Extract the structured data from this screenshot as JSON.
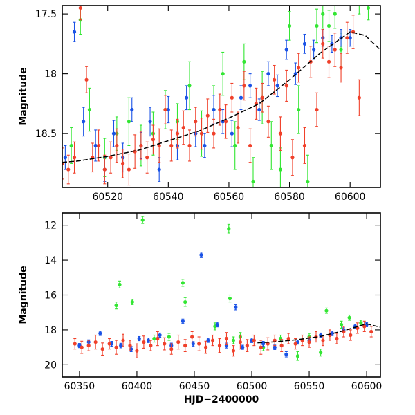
{
  "colors": {
    "green": "#33e633",
    "blue": "#1a52e6",
    "red": "#f0402a",
    "fit": "#000000",
    "axis": "#000000",
    "background": "#ffffff"
  },
  "chart_data": [
    {
      "type": "scatter",
      "panel": "top",
      "title": "",
      "xlabel": "",
      "ylabel": "Magnitude",
      "xlim": [
        60505,
        60610
      ],
      "ylim": [
        18.95,
        17.43
      ],
      "inverted_y": true,
      "x_ticks": [
        60520,
        60540,
        60560,
        60580,
        60600
      ],
      "y_ticks": [
        17.5,
        18,
        18.5
      ],
      "x_tick_labels": [
        "60520",
        "60540",
        "60560",
        "60580",
        "60600"
      ],
      "y_tick_labels": [
        "17.5",
        "18",
        "18.5"
      ],
      "grid": false,
      "series": [
        {
          "color": "green",
          "marker": "point-with-errorbar",
          "x": [
            60508,
            60511,
            60514,
            60519,
            60523,
            60527,
            60531,
            60535,
            60539,
            60543,
            60547,
            60551,
            60555,
            60558,
            60562,
            60565,
            60568,
            60571,
            60574,
            60577,
            60580,
            60583,
            60586,
            60589,
            60591,
            60593,
            60595,
            60597,
            60603,
            60606
          ],
          "y": [
            18.6,
            17.55,
            18.3,
            18.7,
            18.5,
            18.4,
            18.6,
            18.5,
            18.3,
            18.4,
            18.1,
            18.5,
            18.3,
            18.0,
            18.6,
            17.9,
            18.9,
            18.2,
            18.6,
            18.8,
            17.6,
            18.3,
            18.9,
            17.6,
            17.5,
            17.6,
            17.5,
            17.8,
            17.4,
            17.45
          ],
          "err": [
            0.15,
            0.12,
            0.18,
            0.16,
            0.14,
            0.2,
            0.17,
            0.18,
            0.16,
            0.15,
            0.2,
            0.19,
            0.2,
            0.18,
            0.2,
            0.15,
            0.2,
            0.22,
            0.2,
            0.18,
            0.12,
            0.2,
            0.22,
            0.14,
            0.12,
            0.13,
            0.12,
            0.14,
            0.1,
            0.1
          ]
        },
        {
          "color": "blue",
          "marker": "point-with-errorbar",
          "x": [
            60506,
            60509,
            60512,
            60516,
            60519,
            60522,
            60525,
            60528,
            60531,
            60534,
            60537,
            60540,
            60543,
            60546,
            60549,
            60552,
            60555,
            60558,
            60561,
            60564,
            60567,
            60570,
            60573,
            60576,
            60579,
            60582,
            60585,
            60588,
            60591,
            60594,
            60597,
            60600
          ],
          "y": [
            18.7,
            17.65,
            18.4,
            18.6,
            18.8,
            18.5,
            18.7,
            18.3,
            18.6,
            18.4,
            18.8,
            18.3,
            18.6,
            18.2,
            18.5,
            18.6,
            18.3,
            18.4,
            18.5,
            18.2,
            18.1,
            18.3,
            18.0,
            18.1,
            17.8,
            18.0,
            17.75,
            17.8,
            17.7,
            17.75,
            17.7,
            17.7
          ],
          "err": [
            0.1,
            0.08,
            0.12,
            0.13,
            0.1,
            0.11,
            0.12,
            0.1,
            0.11,
            0.12,
            0.1,
            0.11,
            0.12,
            0.1,
            0.11,
            0.1,
            0.12,
            0.1,
            0.11,
            0.1,
            0.1,
            0.09,
            0.1,
            0.09,
            0.08,
            0.09,
            0.08,
            0.08,
            0.07,
            0.07,
            0.07,
            0.07
          ]
        },
        {
          "color": "red",
          "marker": "point-with-errorbar",
          "x": [
            60505,
            60507,
            60509,
            60511,
            60513,
            60515,
            60517,
            60519,
            60521,
            60523,
            60525,
            60527,
            60529,
            60531,
            60533,
            60535,
            60537,
            60539,
            60541,
            60543,
            60545,
            60547,
            60549,
            60551,
            60553,
            60555,
            60557,
            60559,
            60561,
            60563,
            60565,
            60567,
            60569,
            60571,
            60573,
            60575,
            60577,
            60579,
            60581,
            60583,
            60585,
            60587,
            60589,
            60591,
            60593,
            60595,
            60597,
            60599,
            60601,
            60603
          ],
          "y": [
            18.75,
            18.8,
            18.7,
            17.45,
            18.05,
            18.7,
            18.6,
            18.8,
            18.7,
            18.6,
            18.75,
            18.8,
            18.65,
            18.6,
            18.7,
            18.55,
            18.6,
            18.3,
            18.6,
            18.5,
            18.45,
            18.6,
            18.4,
            18.5,
            18.35,
            18.5,
            18.3,
            18.4,
            18.2,
            18.45,
            18.1,
            18.6,
            18.25,
            18.2,
            18.4,
            18.05,
            18.5,
            18.1,
            18.7,
            17.95,
            18.6,
            17.9,
            18.3,
            17.75,
            17.9,
            17.8,
            17.95,
            17.7,
            17.65,
            18.2
          ],
          "err": [
            0.13,
            0.12,
            0.13,
            0.1,
            0.11,
            0.12,
            0.13,
            0.12,
            0.13,
            0.14,
            0.12,
            0.13,
            0.14,
            0.12,
            0.13,
            0.12,
            0.14,
            0.12,
            0.13,
            0.12,
            0.14,
            0.13,
            0.12,
            0.13,
            0.14,
            0.12,
            0.13,
            0.14,
            0.12,
            0.13,
            0.12,
            0.14,
            0.13,
            0.12,
            0.13,
            0.12,
            0.14,
            0.13,
            0.15,
            0.12,
            0.15,
            0.13,
            0.14,
            0.12,
            0.13,
            0.14,
            0.12,
            0.13,
            0.14,
            0.15
          ]
        }
      ],
      "fit_curve": {
        "color": "fit",
        "x": [
          60505,
          60510,
          60520,
          60530,
          60540,
          60550,
          60560,
          60570,
          60580,
          60590,
          60600,
          60605,
          60610
        ],
        "y": [
          18.74,
          18.73,
          18.69,
          18.64,
          18.56,
          18.48,
          18.37,
          18.25,
          18.05,
          17.83,
          17.65,
          17.68,
          17.8
        ]
      }
    },
    {
      "type": "scatter",
      "panel": "bottom",
      "title": "",
      "xlabel": "HJD−2400000",
      "ylabel": "Magnitude",
      "xlim": [
        60335,
        60612
      ],
      "ylim": [
        20.7,
        11.3
      ],
      "inverted_y": true,
      "x_ticks": [
        60350,
        60400,
        60450,
        60500,
        60550,
        60600
      ],
      "y_ticks": [
        12,
        14,
        16,
        18,
        20
      ],
      "x_tick_labels": [
        "60350",
        "60400",
        "60450",
        "60500",
        "60550",
        "60600"
      ],
      "y_tick_labels": [
        "12",
        "14",
        "16",
        "18",
        "20"
      ],
      "grid": false,
      "series": [
        {
          "color": "green",
          "marker": "point-with-errorbar",
          "x": [
            60382,
            60385,
            60396,
            60405,
            60415,
            60428,
            60440,
            60442,
            60468,
            60480,
            60481,
            60484,
            60490,
            60510,
            60525,
            60540,
            60550,
            60560,
            60565,
            60578,
            60585,
            60595
          ],
          "y": [
            16.6,
            15.4,
            16.4,
            11.7,
            18.5,
            18.4,
            15.3,
            16.4,
            17.8,
            12.2,
            16.2,
            18.6,
            18.4,
            19.0,
            18.5,
            19.5,
            18.4,
            19.3,
            16.9,
            17.7,
            17.3,
            17.6
          ],
          "err": [
            0.2,
            0.2,
            0.15,
            0.2,
            0.2,
            0.2,
            0.2,
            0.25,
            0.2,
            0.25,
            0.2,
            0.2,
            0.25,
            0.2,
            0.2,
            0.25,
            0.2,
            0.2,
            0.15,
            0.2,
            0.15,
            0.15
          ]
        },
        {
          "color": "blue",
          "marker": "point-with-errorbar",
          "x": [
            60350,
            60358,
            60368,
            60378,
            60386,
            60395,
            60402,
            60410,
            60420,
            60430,
            60440,
            60449,
            60456,
            60462,
            60470,
            60478,
            60486,
            60492,
            60500,
            60510,
            60520,
            60530,
            60540,
            60550,
            60560,
            60570,
            60580,
            60590,
            60600
          ],
          "y": [
            18.9,
            18.7,
            18.2,
            18.8,
            18.9,
            19.1,
            18.5,
            18.6,
            18.3,
            18.9,
            17.5,
            18.8,
            13.7,
            18.6,
            17.7,
            18.9,
            16.7,
            19.0,
            18.6,
            18.8,
            19.0,
            19.4,
            18.7,
            18.6,
            18.3,
            18.2,
            18.0,
            17.8,
            17.7
          ],
          "err": [
            0.12,
            0.13,
            0.12,
            0.14,
            0.13,
            0.15,
            0.12,
            0.13,
            0.12,
            0.14,
            0.12,
            0.13,
            0.15,
            0.12,
            0.13,
            0.14,
            0.15,
            0.12,
            0.13,
            0.14,
            0.13,
            0.15,
            0.12,
            0.13,
            0.12,
            0.13,
            0.12,
            0.12,
            0.12
          ]
        },
        {
          "color": "red",
          "marker": "point-with-errorbar",
          "x": [
            60346,
            60352,
            60358,
            60364,
            60370,
            60376,
            60382,
            60388,
            60394,
            60400,
            60406,
            60412,
            60418,
            60424,
            60430,
            60436,
            60442,
            60448,
            60454,
            60460,
            60466,
            60472,
            60478,
            60484,
            60490,
            60496,
            60502,
            60508,
            60514,
            60520,
            60526,
            60532,
            60538,
            60544,
            60550,
            60556,
            60562,
            60568,
            60574,
            60580,
            60586,
            60592,
            60598,
            60604
          ],
          "y": [
            18.8,
            19.0,
            18.9,
            18.7,
            19.1,
            18.8,
            19.0,
            18.6,
            18.9,
            19.2,
            18.7,
            18.9,
            18.5,
            18.8,
            19.1,
            18.7,
            18.9,
            18.4,
            18.8,
            19.0,
            18.6,
            18.9,
            18.5,
            19.2,
            18.7,
            18.9,
            18.6,
            19.0,
            18.8,
            18.6,
            18.9,
            18.5,
            18.8,
            18.6,
            18.7,
            18.4,
            18.6,
            18.3,
            18.5,
            18.1,
            18.3,
            17.9,
            17.8,
            18.1
          ],
          "err": [
            0.3,
            0.35,
            0.3,
            0.4,
            0.35,
            0.3,
            0.4,
            0.35,
            0.3,
            0.4,
            0.35,
            0.3,
            0.4,
            0.35,
            0.3,
            0.4,
            0.35,
            0.3,
            0.4,
            0.35,
            0.3,
            0.4,
            0.35,
            0.3,
            0.4,
            0.35,
            0.3,
            0.4,
            0.35,
            0.3,
            0.35,
            0.3,
            0.3,
            0.3,
            0.3,
            0.3,
            0.3,
            0.3,
            0.3,
            0.3,
            0.3,
            0.3,
            0.3,
            0.3
          ]
        }
      ],
      "fit_curve": {
        "color": "fit",
        "x": [
          60505,
          60520,
          60540,
          60560,
          60580,
          60600,
          60612
        ],
        "y": [
          18.74,
          18.69,
          18.56,
          18.37,
          18.05,
          17.65,
          17.85
        ]
      }
    }
  ]
}
